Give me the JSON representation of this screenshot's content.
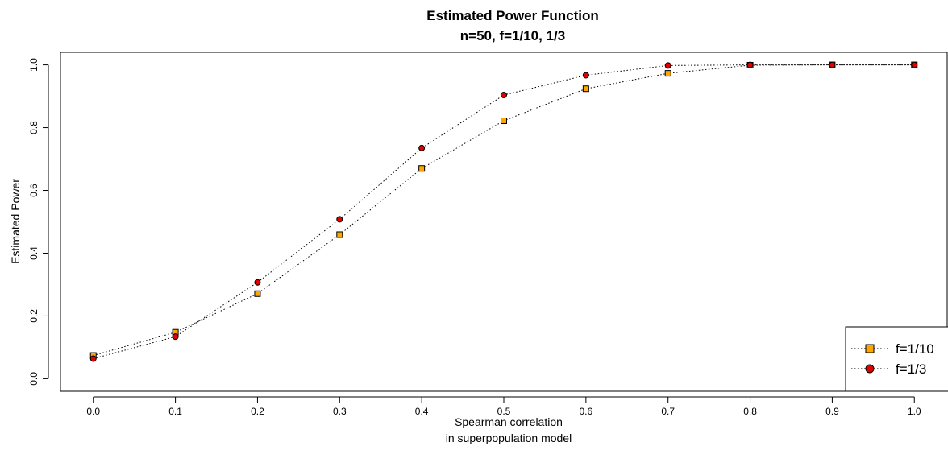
{
  "chart_data": {
    "type": "line",
    "title": "Estimated Power Function",
    "subtitle": "n=50, f=1/10, 1/3",
    "xlabel": [
      "Spearman correlation",
      "in superpopulation model"
    ],
    "ylabel": "Estimated Power",
    "x": [
      0.0,
      0.1,
      0.2,
      0.3,
      0.4,
      0.5,
      0.6,
      0.7,
      0.8,
      0.9,
      1.0
    ],
    "x_tick_labels": [
      "0.0",
      "0.1",
      "0.2",
      "0.3",
      "0.4",
      "0.5",
      "0.6",
      "0.7",
      "0.8",
      "0.9",
      "1.0"
    ],
    "y_ticks": [
      0.0,
      0.2,
      0.4,
      0.6,
      0.8,
      1.0
    ],
    "y_tick_labels": [
      "0.0",
      "0.2",
      "0.4",
      "0.6",
      "0.8",
      "1.0"
    ],
    "xlim": [
      -0.04,
      1.04
    ],
    "ylim": [
      -0.04,
      1.04
    ],
    "grid": false,
    "legend_position": "bottom-right",
    "series": [
      {
        "name": "f=1/10",
        "marker": "square",
        "fill": "#FFA500",
        "stroke": "#000000",
        "line": "dotted",
        "values": [
          0.074,
          0.148,
          0.271,
          0.459,
          0.67,
          0.822,
          0.924,
          0.973,
          0.999,
          1.0,
          1.0
        ]
      },
      {
        "name": "f=1/3",
        "marker": "circle",
        "fill": "#E00000",
        "stroke": "#000000",
        "line": "dotted",
        "values": [
          0.064,
          0.134,
          0.307,
          0.508,
          0.735,
          0.904,
          0.967,
          0.998,
          1.0,
          1.0,
          1.0
        ]
      }
    ]
  }
}
